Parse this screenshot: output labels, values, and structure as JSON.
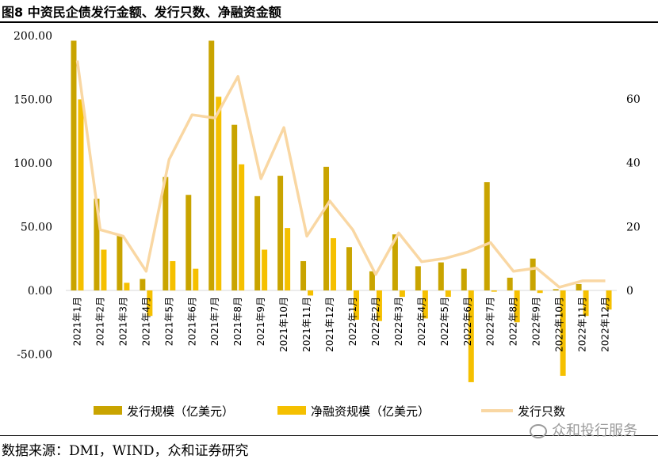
{
  "title": "图8 中资民企债发行金额、发行只数、净融资金额",
  "source": "数据来源：DMI，WIND，众和证券研究",
  "watermark": "众和投行服务",
  "chart_data": {
    "type": "bar+line",
    "categories": [
      "2021年1月",
      "2021年2月",
      "2021年3月",
      "2021年4月",
      "2021年5月",
      "2021年6月",
      "2021年7月",
      "2021年8月",
      "2021年9月",
      "2021年10月",
      "2021年11月",
      "2021年12月",
      "2022年1月",
      "2022年2月",
      "2022年3月",
      "2022年4月",
      "2022年5月",
      "2022年6月",
      "2022年7月",
      "2022年8月",
      "2022年9月",
      "2022年10月",
      "2022年11月",
      "2022年12月"
    ],
    "series": [
      {
        "name": "发行规模（亿美元）",
        "type": "bar",
        "axis": "left",
        "color": "#C9A400",
        "values": [
          196,
          72,
          43,
          9,
          89,
          75,
          196,
          130,
          74,
          90,
          23,
          97,
          34,
          15,
          44,
          19,
          22,
          17,
          85,
          10,
          25,
          1,
          5,
          0
        ]
      },
      {
        "name": "净融资规模（亿美元）",
        "type": "bar",
        "axis": "left",
        "color": "#F5C000",
        "values": [
          150,
          32,
          6,
          -20,
          23,
          17,
          152,
          99,
          32,
          49,
          -4,
          41,
          -23,
          -24,
          -5,
          -22,
          -5,
          -72,
          -1,
          -25,
          -2,
          -67,
          -20,
          -15
        ]
      },
      {
        "name": "发行只数",
        "type": "line",
        "axis": "right",
        "color": "#F9D7A3",
        "values": [
          72,
          19,
          17,
          6,
          41,
          55,
          54,
          67,
          35,
          51,
          17,
          28,
          19,
          5,
          18,
          9,
          10,
          12,
          15,
          6,
          7,
          1,
          3,
          3
        ]
      }
    ],
    "y_left": {
      "ticks": [
        "-50.00",
        "0.00",
        "50.00",
        "100.00",
        "150.00"
      ],
      "top_partial_label": "200.00",
      "range": [
        -50,
        200
      ]
    },
    "y_right": {
      "ticks": [
        "0",
        "20",
        "40",
        "60"
      ],
      "range": [
        0,
        80
      ]
    },
    "legend": {
      "position": "bottom"
    }
  }
}
